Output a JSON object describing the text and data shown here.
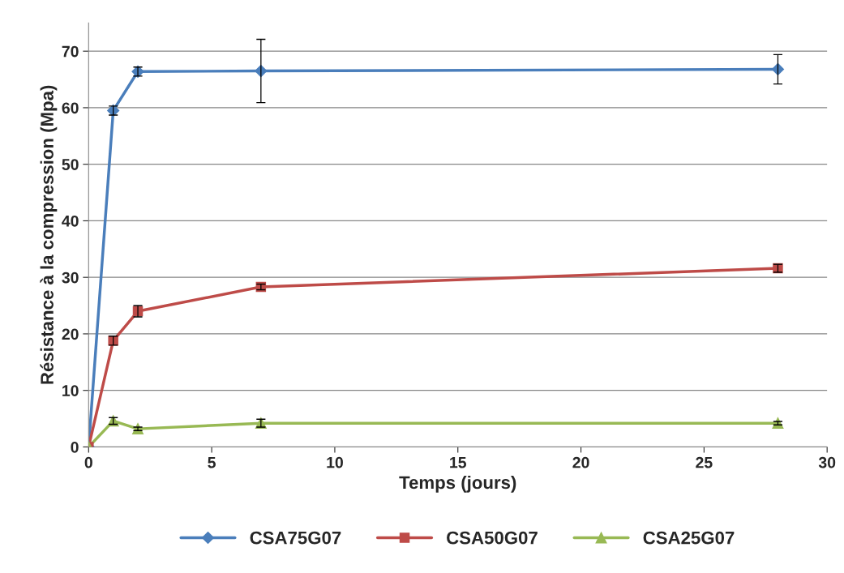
{
  "chart_data": {
    "type": "line",
    "xlabel": "Temps (jours)",
    "ylabel": "Résistance à la compression (Mpa)",
    "x": [
      0,
      1,
      2,
      7,
      28
    ],
    "series": [
      {
        "name": "CSA75G07",
        "color": "#4a7ebb",
        "marker": "diamond",
        "values": [
          0,
          59.5,
          66.4,
          66.5,
          66.8
        ],
        "errors": [
          null,
          0.8,
          0.8,
          5.6,
          2.6
        ]
      },
      {
        "name": "CSA50G07",
        "color": "#be4b48",
        "marker": "square",
        "values": [
          0,
          18.8,
          24.0,
          28.3,
          31.6
        ],
        "errors": [
          null,
          0.8,
          1.0,
          0.5,
          0.7
        ]
      },
      {
        "name": "CSA25G07",
        "color": "#98b954",
        "marker": "triangle",
        "values": [
          0,
          4.6,
          3.2,
          4.2,
          4.2
        ],
        "errors": [
          null,
          0.6,
          0.3,
          0.7,
          0.3
        ]
      }
    ],
    "xlim": [
      0,
      30
    ],
    "xticks": [
      0,
      5,
      10,
      15,
      20,
      25,
      30
    ],
    "ylim": [
      0,
      75
    ],
    "yticks": [
      0,
      10,
      20,
      30,
      40,
      50,
      60,
      70
    ],
    "grid": "y",
    "legend": "bottom"
  }
}
